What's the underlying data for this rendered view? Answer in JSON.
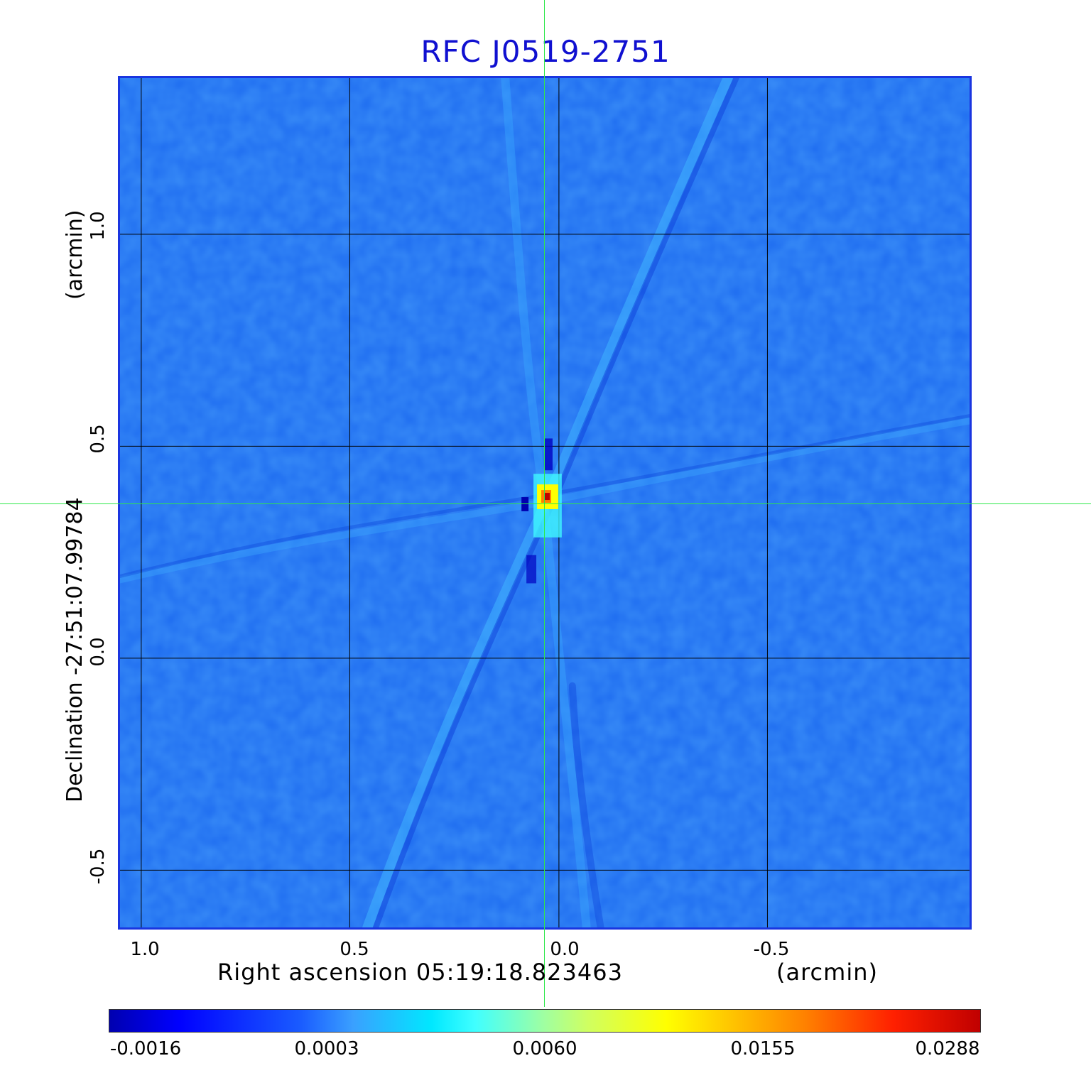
{
  "title": "RFC J0519-2751",
  "x_axis": {
    "label": "Right ascension  05:19:18.823463",
    "unit": "(arcmin)",
    "ticks": [
      "1.0",
      "0.5",
      "0.0",
      "-0.5"
    ]
  },
  "y_axis": {
    "label": "Declination  -27:51:07.99784",
    "unit": "(arcmin)",
    "ticks": [
      "1.0",
      "0.5",
      "0.0",
      "-0.5"
    ]
  },
  "colorbar": {
    "ticks": [
      "-0.0016",
      "0.0003",
      "0.0060",
      "0.0155",
      "0.0288"
    ],
    "colormap": "jet"
  },
  "colors": {
    "title": "#1010d0",
    "frame": "#1a35e0",
    "background_map": "#1e6cf0",
    "crosshair": "#2ee84a",
    "grid": "#000000"
  }
}
